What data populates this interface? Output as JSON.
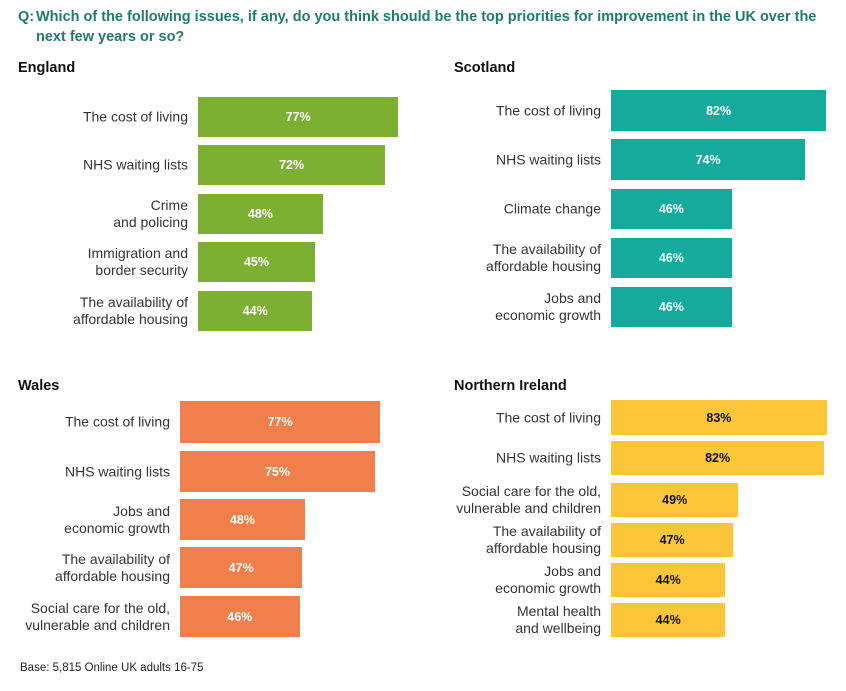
{
  "question": {
    "prefix": "Q:",
    "text": "Which of the following issues, if any, do you think should be the top priorities for improvement in the UK over the next few years or so?"
  },
  "base_note": "Base: 5,815 Online UK adults 16-75",
  "chart_data": [
    {
      "type": "bar",
      "orientation": "horizontal",
      "title": "England",
      "unit": "%",
      "color": "#7daf32",
      "value_color": "#ffffff",
      "categories": [
        "The cost of living",
        "NHS waiting lists",
        "Crime\nand policing",
        "Immigration and\nborder security",
        "The availability of\naffordable housing"
      ],
      "values": [
        77,
        72,
        48,
        45,
        44
      ],
      "labels": [
        "77%",
        "72%",
        "48%",
        "45%",
        "44%"
      ]
    },
    {
      "type": "bar",
      "orientation": "horizontal",
      "title": "Scotland",
      "unit": "%",
      "color": "#14aa9c",
      "value_color": "#ffffff",
      "categories": [
        "The cost of living",
        "NHS waiting lists",
        "Climate change",
        "The availability of\naffordable housing",
        "Jobs and\neconomic growth"
      ],
      "values": [
        82,
        74,
        46,
        46,
        46
      ],
      "labels": [
        "82%",
        "74%",
        "46%",
        "46%",
        "46%"
      ]
    },
    {
      "type": "bar",
      "orientation": "horizontal",
      "title": "Wales",
      "unit": "%",
      "color": "#f07f4b",
      "value_color": "#ffffff",
      "categories": [
        "The cost of living",
        "NHS waiting lists",
        "Jobs and\neconomic growth",
        "The availability of\naffordable housing",
        "Social care for the old,\nvulnerable and children"
      ],
      "values": [
        77,
        75,
        48,
        47,
        46
      ],
      "labels": [
        "77%",
        "75%",
        "48%",
        "47%",
        "46%"
      ]
    },
    {
      "type": "bar",
      "orientation": "horizontal",
      "title": "Northern Ireland",
      "unit": "%",
      "color": "#fcc53a",
      "value_color": "#111111",
      "categories": [
        "The cost of living",
        "NHS waiting lists",
        "Social care for the old,\nvulnerable and children",
        "The availability of\naffordable housing",
        "Jobs and\neconomic growth",
        "Mental health\nand wellbeing"
      ],
      "values": [
        83,
        82,
        49,
        47,
        44,
        44
      ],
      "labels": [
        "83%",
        "82%",
        "49%",
        "47%",
        "44%",
        "44%"
      ]
    }
  ]
}
